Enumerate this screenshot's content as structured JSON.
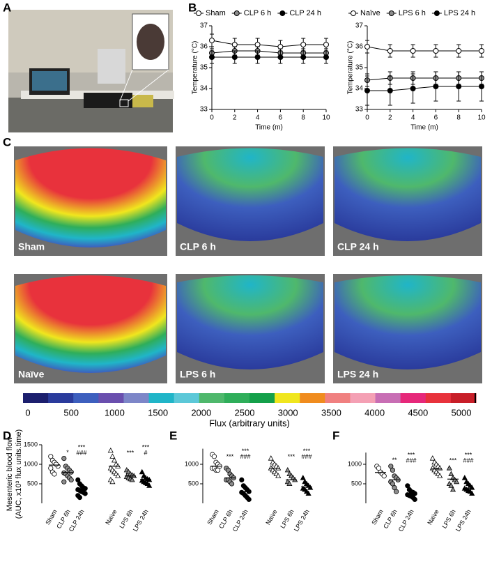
{
  "panel_labels": [
    "A",
    "B",
    "C",
    "D",
    "E",
    "F"
  ],
  "images": {
    "labels": [
      "Sham",
      "CLP 6 h",
      "CLP 24 h",
      "Naïve",
      "LPS 6 h",
      "LPS 24 h"
    ]
  },
  "chart_data": [
    {
      "type": "line",
      "x": [
        0,
        2,
        4,
        6,
        8,
        10
      ],
      "xlim": [
        0,
        10
      ],
      "xticks": [
        0,
        2,
        4,
        6,
        8,
        10
      ],
      "ylim": [
        33,
        37
      ],
      "yticks": [
        33,
        34,
        35,
        36,
        37
      ],
      "xlabel": "Time (m)",
      "ylabel": "Temperature (°C)",
      "series": [
        {
          "name": "Sham",
          "color": "#ffffff",
          "values": [
            36.3,
            36.1,
            36.1,
            36.0,
            36.1,
            36.1
          ],
          "errors": [
            0.3,
            0.3,
            0.3,
            0.3,
            0.3,
            0.3
          ]
        },
        {
          "name": "CLP 6 h",
          "color": "#8c8c8c",
          "values": [
            35.7,
            35.8,
            35.8,
            35.7,
            35.7,
            35.7
          ],
          "errors": [
            0.2,
            0.2,
            0.2,
            0.2,
            0.2,
            0.2
          ]
        },
        {
          "name": "CLP 24 h",
          "color": "#000000",
          "values": [
            35.5,
            35.5,
            35.5,
            35.5,
            35.5,
            35.5
          ],
          "errors": [
            0.3,
            0.3,
            0.3,
            0.3,
            0.3,
            0.3
          ]
        }
      ]
    },
    {
      "type": "line",
      "x": [
        0,
        2,
        4,
        6,
        8,
        10
      ],
      "xlim": [
        0,
        10
      ],
      "xticks": [
        0,
        2,
        4,
        6,
        8,
        10
      ],
      "ylim": [
        33,
        37
      ],
      "yticks": [
        33,
        34,
        35,
        36,
        37
      ],
      "xlabel": "Time (m)",
      "ylabel": "Temperature (°C)",
      "series": [
        {
          "name": "Naïve",
          "color": "#ffffff",
          "values": [
            36.0,
            35.8,
            35.8,
            35.8,
            35.8,
            35.8
          ],
          "errors": [
            0.3,
            0.3,
            0.3,
            0.3,
            0.3,
            0.3
          ]
        },
        {
          "name": "LPS 6 h",
          "color": "#8c8c8c",
          "values": [
            34.4,
            34.5,
            34.5,
            34.5,
            34.5,
            34.5
          ],
          "errors": [
            0.3,
            0.3,
            0.3,
            0.3,
            0.3,
            0.3
          ]
        },
        {
          "name": "LPS 24 h",
          "color": "#000000",
          "values": [
            33.9,
            33.9,
            34.0,
            34.1,
            34.1,
            34.1
          ],
          "errors": [
            0.7,
            0.7,
            0.7,
            0.7,
            0.7,
            0.7
          ]
        }
      ]
    },
    {
      "type": "colorbar",
      "xlim": [
        0,
        5000
      ],
      "xticks": [
        0,
        500,
        1000,
        1500,
        2000,
        2500,
        3000,
        3500,
        4000,
        4500,
        5000
      ],
      "xlabel": "Flux (arbitrary units)",
      "colors": [
        "#1c1f6e",
        "#2a3b9c",
        "#3d5fbe",
        "#6a4fae",
        "#7d86c8",
        "#20b5c8",
        "#5cc8d8",
        "#4fb86c",
        "#2fae5a",
        "#14a04a",
        "#f0e61e",
        "#f08c1e",
        "#f08080",
        "#f4a0b4",
        "#c86eb4",
        "#e6287a",
        "#e8323c",
        "#c81e28"
      ]
    },
    {
      "type": "dotplot",
      "ylabel": [
        "Mesenteric blood flow",
        "(AUC, x10³ flux units.time)"
      ],
      "ylim": [
        0,
        1500
      ],
      "yticks": [
        500,
        1000,
        1500
      ],
      "series": [
        {
          "name": "Sham",
          "marker": "circle",
          "color": "#ffffff",
          "values": [
            1200,
            1100,
            1050,
            1000,
            950,
            900,
            800,
            750,
            1000
          ],
          "mean": 980,
          "annotations": []
        },
        {
          "name": "CLP 6h",
          "marker": "circle",
          "color": "#8c8c8c",
          "values": [
            1150,
            950,
            900,
            850,
            800,
            780,
            750,
            700,
            650,
            600,
            550
          ],
          "mean": 790,
          "annotations": [
            "*"
          ]
        },
        {
          "name": "CLP 24h",
          "marker": "circle",
          "color": "#000000",
          "values": [
            600,
            500,
            450,
            400,
            380,
            350,
            330,
            300,
            280,
            250,
            200,
            150
          ],
          "mean": 350,
          "annotations": [
            "***",
            "###"
          ]
        },
        {
          "name": "Naïve",
          "marker": "triangle",
          "color": "#ffffff",
          "values": [
            1350,
            1200,
            1100,
            1000,
            950,
            900,
            850,
            800,
            750,
            700,
            600,
            550
          ],
          "mean": 950,
          "annotations": []
        },
        {
          "name": "LPS 6h",
          "marker": "triangle",
          "color": "#8c8c8c",
          "values": [
            850,
            800,
            750,
            720,
            700,
            680,
            650,
            620,
            600
          ],
          "mean": 700,
          "annotations": [
            "***"
          ]
        },
        {
          "name": "LPS 24h",
          "marker": "triangle",
          "color": "#000000",
          "values": [
            800,
            700,
            650,
            620,
            600,
            580,
            550,
            520,
            500,
            450
          ],
          "mean": 610,
          "annotations": [
            "***",
            "#"
          ]
        }
      ]
    },
    {
      "type": "dotplot",
      "ylim": [
        0,
        1400
      ],
      "yticks": [
        500,
        1000
      ],
      "series": [
        {
          "name": "Sham",
          "marker": "circle",
          "color": "#ffffff",
          "values": [
            1250,
            1200,
            1050,
            1000,
            950,
            900,
            900,
            850,
            850
          ],
          "mean": 950,
          "annotations": []
        },
        {
          "name": "CLP 6h",
          "marker": "circle",
          "color": "#8c8c8c",
          "values": [
            900,
            850,
            750,
            700,
            650,
            600,
            600,
            550,
            500
          ],
          "mean": 650,
          "annotations": [
            "***"
          ]
        },
        {
          "name": "CLP 24h",
          "marker": "circle",
          "color": "#000000",
          "values": [
            600,
            450,
            400,
            350,
            300,
            280,
            250,
            200,
            150,
            100
          ],
          "mean": 300,
          "annotations": [
            "***",
            "###"
          ]
        },
        {
          "name": "Naïve",
          "marker": "triangle",
          "color": "#ffffff",
          "values": [
            1150,
            1050,
            1000,
            950,
            900,
            900,
            850,
            800,
            750,
            700
          ],
          "mean": 900,
          "annotations": []
        },
        {
          "name": "LPS 6h",
          "marker": "triangle",
          "color": "#8c8c8c",
          "values": [
            850,
            750,
            700,
            650,
            600,
            550,
            500
          ],
          "mean": 600,
          "annotations": [
            "***"
          ]
        },
        {
          "name": "LPS 24h",
          "marker": "triangle",
          "color": "#000000",
          "values": [
            650,
            550,
            500,
            450,
            400,
            380,
            350,
            300,
            250
          ],
          "mean": 420,
          "annotations": [
            "***",
            "###"
          ]
        }
      ]
    },
    {
      "type": "dotplot",
      "ylim": [
        0,
        1300
      ],
      "yticks": [
        500,
        1000
      ],
      "series": [
        {
          "name": "Sham",
          "marker": "circle",
          "color": "#ffffff",
          "values": [
            950,
            900,
            800,
            750,
            700
          ],
          "mean": 790,
          "annotations": []
        },
        {
          "name": "CLP 6h",
          "marker": "circle",
          "color": "#8c8c8c",
          "values": [
            950,
            850,
            700,
            650,
            600,
            550,
            500,
            400,
            300
          ],
          "mean": 600,
          "annotations": [
            "**"
          ]
        },
        {
          "name": "CLP 24h",
          "marker": "circle",
          "color": "#000000",
          "values": [
            450,
            350,
            300,
            280,
            250,
            220,
            200,
            180,
            150,
            100
          ],
          "mean": 250,
          "annotations": [
            "***",
            "###"
          ]
        },
        {
          "name": "Naïve",
          "marker": "triangle",
          "color": "#ffffff",
          "values": [
            1150,
            1050,
            1000,
            950,
            900,
            900,
            850,
            800,
            750,
            700
          ],
          "mean": 880,
          "annotations": []
        },
        {
          "name": "LPS 6h",
          "marker": "triangle",
          "color": "#8c8c8c",
          "values": [
            900,
            750,
            650,
            600,
            550,
            500,
            450,
            350
          ],
          "mean": 620,
          "annotations": [
            "***"
          ]
        },
        {
          "name": "LPS 24h",
          "marker": "triangle",
          "color": "#000000",
          "values": [
            650,
            550,
            500,
            450,
            400,
            380,
            350,
            320,
            300,
            250
          ],
          "mean": 380,
          "annotations": [
            "***",
            "###"
          ]
        }
      ]
    }
  ]
}
